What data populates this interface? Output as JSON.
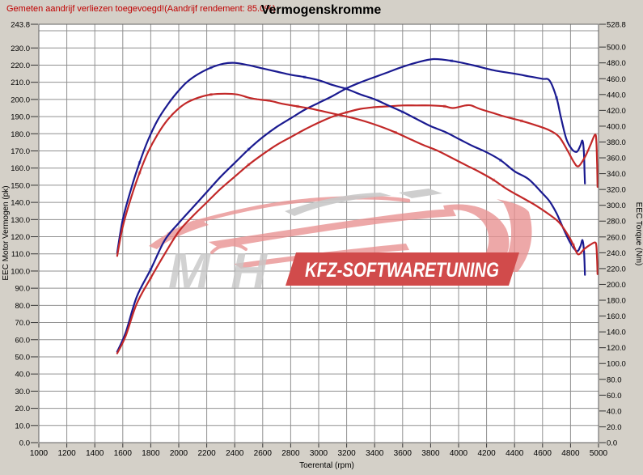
{
  "header": {
    "note": "Gemeten aandrijf verliezen toegevoegd!(Aandrijf rendement: 85.0%)",
    "title": "Vermogenskromme"
  },
  "watermark": {
    "mh": "MH",
    "banner": "KFZ-SOFTWARETUNING",
    "banner_color": "#d14b4b",
    "car_color": "#e89090",
    "gray_color": "#c9c9c9"
  },
  "colors": {
    "curve_blue": "#1a1a90",
    "curve_red": "#c22828",
    "marker_blue": "#8a97e0",
    "marker_red": "#e49a9a",
    "grid": "#909090",
    "plot_border": "#606060",
    "note_red": "#c00000"
  },
  "chart_data": {
    "type": "line",
    "title": "Vermogenskromme",
    "xlabel": "Toerental (rpm)",
    "ylabel_left": "EEC Motor Vermogen (pk)",
    "ylabel_right": "EEC Torque (Nm)",
    "grid": true,
    "x_range": [
      1000,
      5000
    ],
    "y_left_range": [
      0,
      243.8
    ],
    "y_right_range": [
      0,
      528.8
    ],
    "y_left_gridline_step": 10,
    "x_tick_labels": [
      "1000",
      "1200",
      "1400",
      "1600",
      "1800",
      "2000",
      "2200",
      "2400",
      "2600",
      "2800",
      "3000",
      "3200",
      "3400",
      "3600",
      "3800",
      "4000",
      "4200",
      "4400",
      "4600",
      "4800",
      "5000"
    ],
    "y_left_tick_labels": [
      "243.8",
      "230.0",
      "220.0",
      "210.0",
      "200.0",
      "190.0",
      "180.0",
      "170.0",
      "160.0",
      "150.0",
      "140.0",
      "130.0",
      "120.0",
      "110.0",
      "100.0",
      "90.0",
      "80.0",
      "70.0",
      "60.0",
      "50.0",
      "40.0",
      "30.0",
      "20.0",
      "10.0",
      "0.0"
    ],
    "y_right_tick_labels": [
      "528.8",
      "500.0",
      "480.0",
      "460.0",
      "440.0",
      "420.0",
      "400.0",
      "380.0",
      "360.0",
      "340.0",
      "320.0",
      "300.0",
      "280.0",
      "260.0",
      "240.0",
      "220.0",
      "200.0",
      "180.0",
      "160.0",
      "140.0",
      "120.0",
      "100.0",
      "80.0",
      "60.0",
      "40.0",
      "20.0",
      "0.0"
    ],
    "series": [
      {
        "name": "power-blue",
        "axis": "left",
        "unit": "pk",
        "color": "#1a1a90",
        "marker_color": "#8a97e0",
        "points": [
          [
            1560,
            53
          ],
          [
            1620,
            64
          ],
          [
            1700,
            85
          ],
          [
            1800,
            101
          ],
          [
            1900,
            118
          ],
          [
            2000,
            128
          ],
          [
            2100,
            137
          ],
          [
            2200,
            146
          ],
          [
            2300,
            155
          ],
          [
            2400,
            163
          ],
          [
            2500,
            171
          ],
          [
            2600,
            178
          ],
          [
            2700,
            184
          ],
          [
            2800,
            189
          ],
          [
            2900,
            194
          ],
          [
            3000,
            198
          ],
          [
            3100,
            202
          ],
          [
            3200,
            206.5
          ],
          [
            3300,
            210
          ],
          [
            3400,
            213
          ],
          [
            3500,
            216
          ],
          [
            3600,
            219
          ],
          [
            3700,
            221.5
          ],
          [
            3820,
            223.5
          ],
          [
            3950,
            222.5
          ],
          [
            4100,
            220
          ],
          [
            4250,
            217
          ],
          [
            4400,
            215
          ],
          [
            4500,
            213.5
          ],
          [
            4600,
            212
          ],
          [
            4650,
            211
          ],
          [
            4700,
            201
          ],
          [
            4730,
            190
          ],
          [
            4770,
            177
          ],
          [
            4810,
            171
          ],
          [
            4845,
            169.5
          ],
          [
            4870,
            173
          ],
          [
            4885,
            176
          ],
          [
            4895,
            170
          ],
          [
            4900,
            158
          ],
          [
            4903,
            151
          ]
        ]
      },
      {
        "name": "power-red",
        "axis": "left",
        "unit": "pk",
        "color": "#c22828",
        "marker_color": "#e49a9a",
        "points": [
          [
            1560,
            52
          ],
          [
            1620,
            62
          ],
          [
            1700,
            81
          ],
          [
            1800,
            96
          ],
          [
            1900,
            110
          ],
          [
            2000,
            123
          ],
          [
            2100,
            132
          ],
          [
            2200,
            140
          ],
          [
            2300,
            148
          ],
          [
            2400,
            155
          ],
          [
            2500,
            162
          ],
          [
            2600,
            168
          ],
          [
            2700,
            173.5
          ],
          [
            2800,
            178
          ],
          [
            2900,
            182.5
          ],
          [
            3000,
            186.5
          ],
          [
            3100,
            190
          ],
          [
            3200,
            192.5
          ],
          [
            3300,
            194.5
          ],
          [
            3400,
            195.5
          ],
          [
            3500,
            196
          ],
          [
            3600,
            196.5
          ],
          [
            3700,
            196.5
          ],
          [
            3800,
            196.5
          ],
          [
            3900,
            196
          ],
          [
            3960,
            195
          ],
          [
            4050,
            196.5
          ],
          [
            4090,
            196.5
          ],
          [
            4150,
            194.5
          ],
          [
            4250,
            192
          ],
          [
            4330,
            190
          ],
          [
            4450,
            187.5
          ],
          [
            4550,
            185
          ],
          [
            4650,
            182
          ],
          [
            4720,
            178
          ],
          [
            4780,
            170
          ],
          [
            4820,
            164
          ],
          [
            4855,
            161
          ],
          [
            4900,
            166
          ],
          [
            4940,
            173
          ],
          [
            4975,
            179.5
          ],
          [
            4985,
            175
          ],
          [
            4990,
            162
          ],
          [
            4993,
            149
          ]
        ]
      },
      {
        "name": "torque-blue",
        "axis": "right",
        "unit": "Nm",
        "color": "#1a1a90",
        "marker_color": "#8a97e0",
        "points": [
          [
            1560,
            240
          ],
          [
            1600,
            282
          ],
          [
            1660,
            321
          ],
          [
            1720,
            354
          ],
          [
            1780,
            382
          ],
          [
            1850,
            408
          ],
          [
            1920,
            427
          ],
          [
            1990,
            443
          ],
          [
            2060,
            456
          ],
          [
            2140,
            466
          ],
          [
            2230,
            474
          ],
          [
            2320,
            479
          ],
          [
            2400,
            480
          ],
          [
            2500,
            477
          ],
          [
            2600,
            473
          ],
          [
            2700,
            469
          ],
          [
            2800,
            465
          ],
          [
            2900,
            462
          ],
          [
            3000,
            458
          ],
          [
            3100,
            452
          ],
          [
            3200,
            447
          ],
          [
            3300,
            440
          ],
          [
            3400,
            434
          ],
          [
            3500,
            426
          ],
          [
            3600,
            418
          ],
          [
            3700,
            409
          ],
          [
            3800,
            400
          ],
          [
            3900,
            393
          ],
          [
            4000,
            384
          ],
          [
            4100,
            375
          ],
          [
            4200,
            367
          ],
          [
            4300,
            357
          ],
          [
            4400,
            343
          ],
          [
            4500,
            333
          ],
          [
            4600,
            315
          ],
          [
            4650,
            305
          ],
          [
            4700,
            290
          ],
          [
            4750,
            270
          ],
          [
            4800,
            252
          ],
          [
            4845,
            242
          ],
          [
            4870,
            248
          ],
          [
            4885,
            256
          ],
          [
            4895,
            245
          ],
          [
            4900,
            228
          ],
          [
            4903,
            212
          ]
        ]
      },
      {
        "name": "torque-red",
        "axis": "right",
        "unit": "Nm",
        "color": "#c22828",
        "marker_color": "#e49a9a",
        "points": [
          [
            1560,
            236
          ],
          [
            1600,
            273
          ],
          [
            1660,
            310
          ],
          [
            1720,
            341
          ],
          [
            1780,
            367
          ],
          [
            1850,
            390
          ],
          [
            1920,
            408
          ],
          [
            1990,
            421
          ],
          [
            2060,
            430
          ],
          [
            2140,
            436
          ],
          [
            2230,
            440
          ],
          [
            2330,
            441
          ],
          [
            2420,
            440
          ],
          [
            2500,
            436
          ],
          [
            2560,
            434
          ],
          [
            2650,
            432
          ],
          [
            2750,
            428
          ],
          [
            2850,
            425
          ],
          [
            2950,
            422
          ],
          [
            3050,
            418
          ],
          [
            3150,
            414
          ],
          [
            3250,
            410
          ],
          [
            3350,
            405
          ],
          [
            3450,
            399
          ],
          [
            3550,
            392
          ],
          [
            3650,
            384
          ],
          [
            3750,
            376
          ],
          [
            3850,
            369
          ],
          [
            3950,
            360
          ],
          [
            4050,
            351
          ],
          [
            4150,
            342
          ],
          [
            4250,
            332
          ],
          [
            4350,
            320
          ],
          [
            4450,
            310
          ],
          [
            4550,
            300
          ],
          [
            4650,
            288
          ],
          [
            4720,
            278
          ],
          [
            4780,
            263
          ],
          [
            4820,
            250
          ],
          [
            4855,
            238
          ],
          [
            4900,
            245
          ],
          [
            4940,
            250
          ],
          [
            4975,
            253
          ],
          [
            4985,
            248
          ],
          [
            4990,
            230
          ],
          [
            4993,
            213
          ]
        ]
      }
    ]
  }
}
